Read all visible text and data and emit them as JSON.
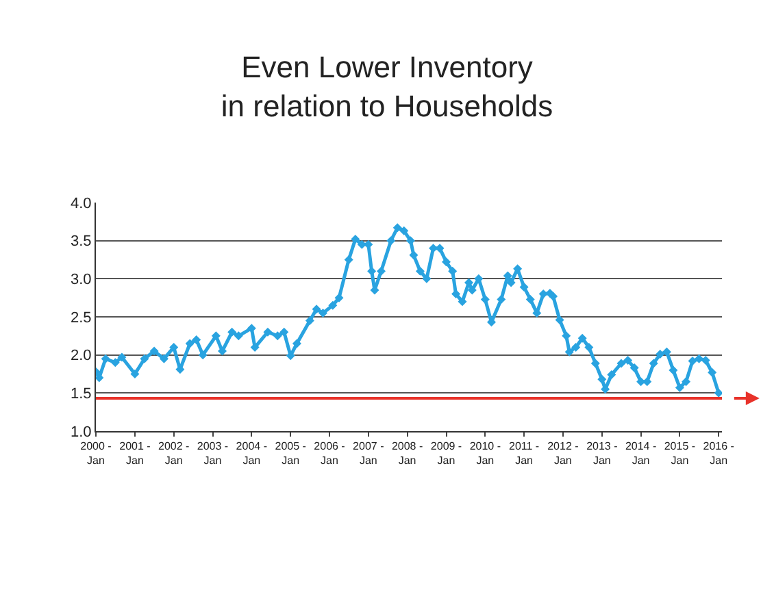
{
  "chart_data": {
    "type": "line",
    "title": "Even Lower Inventory\nin relation to Households",
    "x": [
      "2000-01",
      "2000-02",
      "2000-04",
      "2000-07",
      "2000-09",
      "2001-01",
      "2001-04",
      "2001-07",
      "2001-10",
      "2002-01",
      "2002-03",
      "2002-06",
      "2002-08",
      "2002-10",
      "2003-02",
      "2003-04",
      "2003-07",
      "2003-09",
      "2004-01",
      "2004-02",
      "2004-06",
      "2004-09",
      "2004-11",
      "2005-01",
      "2005-03",
      "2005-07",
      "2005-09",
      "2005-11",
      "2006-02",
      "2006-04",
      "2006-07",
      "2006-09",
      "2006-11",
      "2007-01",
      "2007-02",
      "2007-03",
      "2007-05",
      "2007-08",
      "2007-10",
      "2007-12",
      "2008-02",
      "2008-03",
      "2008-05",
      "2008-07",
      "2008-09",
      "2008-11",
      "2009-01",
      "2009-03",
      "2009-04",
      "2009-06",
      "2009-08",
      "2009-09",
      "2009-11",
      "2010-01",
      "2010-03",
      "2010-06",
      "2010-08",
      "2010-09",
      "2010-11",
      "2011-01",
      "2011-03",
      "2011-05",
      "2011-07",
      "2011-09",
      "2011-10",
      "2011-12",
      "2012-02",
      "2012-03",
      "2012-05",
      "2012-07",
      "2012-09",
      "2012-11",
      "2013-01",
      "2013-02",
      "2013-04",
      "2013-07",
      "2013-09",
      "2013-11",
      "2014-01",
      "2014-03",
      "2014-05",
      "2014-07",
      "2014-09",
      "2014-11",
      "2015-01",
      "2015-03",
      "2015-05",
      "2015-07",
      "2015-09",
      "2015-11",
      "2016-01"
    ],
    "series": [
      {
        "color": "#29a3e0",
        "values": [
          1.78,
          1.7,
          1.95,
          1.9,
          1.97,
          1.75,
          1.95,
          2.05,
          1.95,
          2.1,
          1.81,
          2.15,
          2.2,
          2.0,
          2.25,
          2.05,
          2.3,
          2.25,
          2.35,
          2.1,
          2.3,
          2.25,
          2.3,
          1.99,
          2.15,
          2.45,
          2.6,
          2.55,
          2.65,
          2.75,
          3.25,
          3.52,
          3.45,
          3.45,
          3.1,
          2.85,
          3.1,
          3.5,
          3.67,
          3.63,
          3.5,
          3.31,
          3.1,
          3.0,
          3.4,
          3.4,
          3.22,
          3.1,
          2.8,
          2.7,
          2.95,
          2.85,
          3.0,
          2.73,
          2.43,
          2.73,
          3.04,
          2.95,
          3.13,
          2.89,
          2.73,
          2.55,
          2.8,
          2.81,
          2.77,
          2.46,
          2.25,
          2.04,
          2.1,
          2.22,
          2.1,
          1.89,
          1.68,
          1.55,
          1.74,
          1.89,
          1.93,
          1.83,
          1.65,
          1.65,
          1.89,
          2.01,
          2.04,
          1.8,
          1.57,
          1.65,
          1.92,
          1.95,
          1.93,
          1.77,
          1.5
        ]
      }
    ],
    "xlim": [
      "2000-01",
      "2016-02"
    ],
    "xticks": [
      {
        "value": "2000-01",
        "label": "2000 -\nJan"
      },
      {
        "value": "2001-01",
        "label": "2001 -\nJan"
      },
      {
        "value": "2002-01",
        "label": "2002 -\nJan"
      },
      {
        "value": "2003-01",
        "label": "2003 -\nJan"
      },
      {
        "value": "2004-01",
        "label": "2004 -\nJan"
      },
      {
        "value": "2005-01",
        "label": "2005 -\nJan"
      },
      {
        "value": "2006-01",
        "label": "2006 -\nJan"
      },
      {
        "value": "2007-01",
        "label": "2007 -\nJan"
      },
      {
        "value": "2008-01",
        "label": "2008 -\nJan"
      },
      {
        "value": "2009-01",
        "label": "2009 -\nJan"
      },
      {
        "value": "2010-01",
        "label": "2010 -\nJan"
      },
      {
        "value": "2011-01",
        "label": "2011 -\nJan"
      },
      {
        "value": "2012-01",
        "label": "2012 -\nJan"
      },
      {
        "value": "2013-01",
        "label": "2013 -\nJan"
      },
      {
        "value": "2014-01",
        "label": "2014 -\nJan"
      },
      {
        "value": "2015-01",
        "label": "2015 -\nJan"
      },
      {
        "value": "2016-01",
        "label": "2016 -\nJan"
      }
    ],
    "ylim": [
      1,
      4
    ],
    "yticks": [
      {
        "value": 1,
        "label": "1.0"
      },
      {
        "value": 1.5,
        "label": "1.5"
      },
      {
        "value": 2,
        "label": "2.0"
      },
      {
        "value": 2.5,
        "label": "2.5"
      },
      {
        "value": 3,
        "label": "3.0"
      },
      {
        "value": 3.5,
        "label": "3.5"
      },
      {
        "value": 4,
        "label": "4.0"
      }
    ],
    "ref_lines": [
      {
        "axis": "y",
        "value": 1.43,
        "color": "#e8322a"
      }
    ],
    "grid": "y",
    "marker": "diamond",
    "line_style": "solid"
  }
}
